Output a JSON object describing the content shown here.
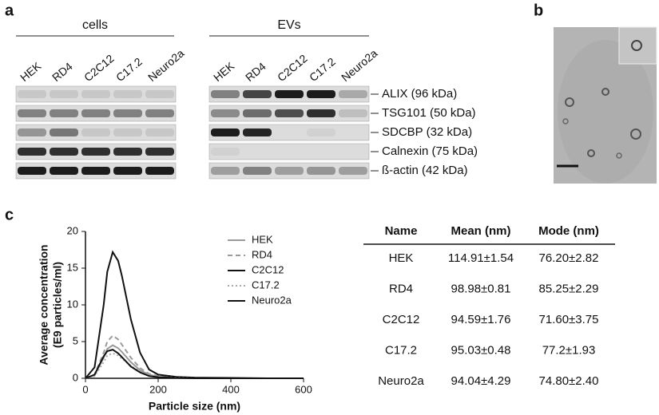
{
  "panel_labels": [
    "a",
    "b",
    "c"
  ],
  "panel_a": {
    "groups": [
      "cells",
      "EVs"
    ],
    "lanes": [
      "HEK",
      "RD4",
      "C2C12",
      "C17.2",
      "Neuro2a"
    ],
    "proteins": [
      "ALIX (96 kDa)",
      "TSG101 (50 kDa)",
      "SDCBP (32 kDa)",
      "Calnexin (75 kDa)",
      "ß-actin (42 kDa)"
    ]
  },
  "chart_data": {
    "type": "line",
    "xlabel": "Particle size (nm)",
    "ylabel": [
      "Average concentration",
      "(E9 particles/ml)"
    ],
    "x": [
      0,
      25,
      50,
      60,
      75,
      90,
      100,
      125,
      150,
      175,
      200,
      250,
      300,
      400,
      500,
      600
    ],
    "series": [
      {
        "name": "HEK",
        "color": "#9a9a9a",
        "dash": "solid",
        "values": [
          0,
          0.4,
          2.8,
          4,
          4.5,
          4.1,
          3.6,
          2.2,
          1.1,
          0.5,
          0.2,
          0.1,
          0,
          0,
          0,
          0
        ]
      },
      {
        "name": "RD4",
        "color": "#9a9a9a",
        "dash": "dashed",
        "values": [
          0,
          0.5,
          3.5,
          5,
          5.8,
          5.3,
          4.6,
          2.8,
          1.4,
          0.6,
          0.3,
          0.1,
          0.05,
          0,
          0,
          0
        ]
      },
      {
        "name": "C2C12",
        "color": "#111111",
        "dash": "solid",
        "values": [
          0,
          1.5,
          10,
          14.5,
          17.2,
          16,
          14,
          8,
          3.5,
          1.2,
          0.5,
          0.2,
          0.1,
          0.05,
          0,
          0
        ]
      },
      {
        "name": "C17.2",
        "color": "#aaaaaa",
        "dash": "dotted",
        "values": [
          0,
          0.3,
          2.2,
          3.1,
          3.4,
          3.1,
          2.7,
          1.7,
          0.9,
          0.4,
          0.2,
          0.1,
          0,
          0,
          0,
          0
        ]
      },
      {
        "name": "Neuro2a",
        "color": "#111111",
        "dash": "solid",
        "values": [
          0,
          0.5,
          3,
          3.7,
          3.9,
          3.4,
          2.9,
          1.6,
          0.8,
          0.3,
          0.15,
          0.05,
          0,
          0,
          0,
          0
        ]
      }
    ],
    "xlim": [
      0,
      600
    ],
    "xticks": [
      0,
      200,
      400,
      600
    ],
    "ylim": [
      0,
      20
    ],
    "yticks": [
      0,
      5,
      10,
      15,
      20
    ],
    "legend": "upper right"
  },
  "table": {
    "header": [
      "Name",
      "Mean (nm)",
      "Mode (nm)"
    ],
    "rows": [
      [
        "HEK",
        "114.91±1.54",
        "76.20±2.82"
      ],
      [
        "RD4",
        "98.98±0.81",
        "85.25±2.29"
      ],
      [
        "C2C12",
        "94.59±1.76",
        "71.60±3.75"
      ],
      [
        "C17.2",
        "95.03±0.48",
        "77.2±1.93"
      ],
      [
        "Neuro2a",
        "94.04±4.29",
        "74.80±2.40"
      ]
    ]
  }
}
